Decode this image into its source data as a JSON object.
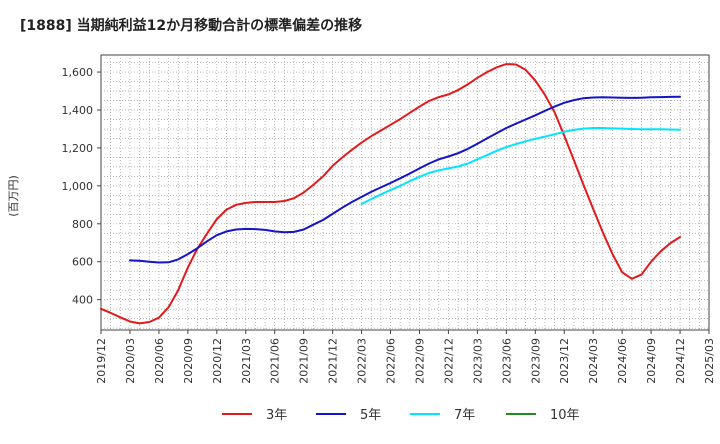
{
  "chart_data": {
    "type": "line",
    "title": "[1888]  当期純利益12か月移動合計の標準偏差の推移",
    "ylabel": "(百万円)",
    "xlabel": "",
    "ylim": [
      240,
      1690
    ],
    "yticks": [
      400,
      600,
      800,
      1000,
      1200,
      1400,
      1600
    ],
    "ytick_labels": [
      "400",
      "600",
      "800",
      "1,000",
      "1,200",
      "1,400",
      "1,600"
    ],
    "x_start": "2019-12",
    "x_end": "2025-03",
    "xtick_labels": [
      "2019/12",
      "2020/03",
      "2020/06",
      "2020/09",
      "2020/12",
      "2021/03",
      "2021/06",
      "2021/09",
      "2021/12",
      "2022/03",
      "2022/06",
      "2022/09",
      "2022/12",
      "2023/03",
      "2023/06",
      "2023/09",
      "2023/12",
      "2024/03",
      "2024/06",
      "2024/09",
      "2024/12",
      "2025/03"
    ],
    "grid": true,
    "legend_position": "bottom",
    "series": [
      {
        "name": "3年",
        "color": "#e31a1c",
        "points": [
          [
            "2019-12",
            352
          ],
          [
            "2020-01",
            330
          ],
          [
            "2020-02",
            307
          ],
          [
            "2020-03",
            285
          ],
          [
            "2020-04",
            275
          ],
          [
            "2020-05",
            282
          ],
          [
            "2020-06",
            305
          ],
          [
            "2020-07",
            360
          ],
          [
            "2020-08",
            450
          ],
          [
            "2020-09",
            570
          ],
          [
            "2020-10",
            670
          ],
          [
            "2020-11",
            750
          ],
          [
            "2020-12",
            825
          ],
          [
            "2021-01",
            875
          ],
          [
            "2021-02",
            900
          ],
          [
            "2021-03",
            910
          ],
          [
            "2021-04",
            915
          ],
          [
            "2021-05",
            915
          ],
          [
            "2021-06",
            915
          ],
          [
            "2021-07",
            920
          ],
          [
            "2021-08",
            935
          ],
          [
            "2021-09",
            965
          ],
          [
            "2021-10",
            1005
          ],
          [
            "2021-11",
            1050
          ],
          [
            "2021-12",
            1105
          ],
          [
            "2022-01",
            1150
          ],
          [
            "2022-02",
            1190
          ],
          [
            "2022-03",
            1228
          ],
          [
            "2022-04",
            1262
          ],
          [
            "2022-05",
            1292
          ],
          [
            "2022-06",
            1322
          ],
          [
            "2022-07",
            1352
          ],
          [
            "2022-08",
            1385
          ],
          [
            "2022-09",
            1418
          ],
          [
            "2022-10",
            1448
          ],
          [
            "2022-11",
            1468
          ],
          [
            "2022-12",
            1482
          ],
          [
            "2023-01",
            1505
          ],
          [
            "2023-02",
            1535
          ],
          [
            "2023-03",
            1570
          ],
          [
            "2023-04",
            1600
          ],
          [
            "2023-05",
            1625
          ],
          [
            "2023-06",
            1642
          ],
          [
            "2023-07",
            1640
          ],
          [
            "2023-08",
            1612
          ],
          [
            "2023-09",
            1555
          ],
          [
            "2023-10",
            1480
          ],
          [
            "2023-11",
            1388
          ],
          [
            "2023-12",
            1265
          ],
          [
            "2024-01",
            1135
          ],
          [
            "2024-02",
            1005
          ],
          [
            "2024-03",
            878
          ],
          [
            "2024-04",
            755
          ],
          [
            "2024-05",
            640
          ],
          [
            "2024-06",
            545
          ],
          [
            "2024-07",
            510
          ],
          [
            "2024-08",
            532
          ],
          [
            "2024-09",
            600
          ],
          [
            "2024-10",
            655
          ],
          [
            "2024-11",
            698
          ],
          [
            "2024-12",
            730
          ]
        ]
      },
      {
        "name": "5年",
        "color": "#1414c8",
        "points": [
          [
            "2020-03",
            607
          ],
          [
            "2020-04",
            605
          ],
          [
            "2020-05",
            600
          ],
          [
            "2020-06",
            596
          ],
          [
            "2020-07",
            597
          ],
          [
            "2020-08",
            612
          ],
          [
            "2020-09",
            640
          ],
          [
            "2020-10",
            672
          ],
          [
            "2020-11",
            708
          ],
          [
            "2020-12",
            740
          ],
          [
            "2021-01",
            760
          ],
          [
            "2021-02",
            770
          ],
          [
            "2021-03",
            773
          ],
          [
            "2021-04",
            772
          ],
          [
            "2021-05",
            768
          ],
          [
            "2021-06",
            760
          ],
          [
            "2021-07",
            755
          ],
          [
            "2021-08",
            757
          ],
          [
            "2021-09",
            770
          ],
          [
            "2021-10",
            795
          ],
          [
            "2021-11",
            820
          ],
          [
            "2021-12",
            852
          ],
          [
            "2022-01",
            885
          ],
          [
            "2022-02",
            915
          ],
          [
            "2022-03",
            942
          ],
          [
            "2022-04",
            968
          ],
          [
            "2022-05",
            992
          ],
          [
            "2022-06",
            1015
          ],
          [
            "2022-07",
            1040
          ],
          [
            "2022-08",
            1065
          ],
          [
            "2022-09",
            1092
          ],
          [
            "2022-10",
            1118
          ],
          [
            "2022-11",
            1140
          ],
          [
            "2022-12",
            1155
          ],
          [
            "2023-01",
            1172
          ],
          [
            "2023-02",
            1195
          ],
          [
            "2023-03",
            1222
          ],
          [
            "2023-04",
            1250
          ],
          [
            "2023-05",
            1278
          ],
          [
            "2023-06",
            1305
          ],
          [
            "2023-07",
            1328
          ],
          [
            "2023-08",
            1350
          ],
          [
            "2023-09",
            1372
          ],
          [
            "2023-10",
            1395
          ],
          [
            "2023-11",
            1418
          ],
          [
            "2023-12",
            1438
          ],
          [
            "2024-01",
            1452
          ],
          [
            "2024-02",
            1462
          ],
          [
            "2024-03",
            1466
          ],
          [
            "2024-04",
            1467
          ],
          [
            "2024-05",
            1466
          ],
          [
            "2024-06",
            1465
          ],
          [
            "2024-07",
            1464
          ],
          [
            "2024-08",
            1465
          ],
          [
            "2024-09",
            1467
          ],
          [
            "2024-10",
            1468
          ],
          [
            "2024-11",
            1469
          ],
          [
            "2024-12",
            1470
          ]
        ]
      },
      {
        "name": "7年",
        "color": "#00e5ff",
        "points": [
          [
            "2022-03",
            905
          ],
          [
            "2022-04",
            930
          ],
          [
            "2022-05",
            955
          ],
          [
            "2022-06",
            978
          ],
          [
            "2022-07",
            1000
          ],
          [
            "2022-08",
            1025
          ],
          [
            "2022-09",
            1048
          ],
          [
            "2022-10",
            1068
          ],
          [
            "2022-11",
            1082
          ],
          [
            "2022-12",
            1092
          ],
          [
            "2023-01",
            1102
          ],
          [
            "2023-02",
            1118
          ],
          [
            "2023-03",
            1140
          ],
          [
            "2023-04",
            1162
          ],
          [
            "2023-05",
            1185
          ],
          [
            "2023-06",
            1205
          ],
          [
            "2023-07",
            1220
          ],
          [
            "2023-08",
            1235
          ],
          [
            "2023-09",
            1248
          ],
          [
            "2023-10",
            1260
          ],
          [
            "2023-11",
            1272
          ],
          [
            "2023-12",
            1285
          ],
          [
            "2024-01",
            1295
          ],
          [
            "2024-02",
            1302
          ],
          [
            "2024-03",
            1305
          ],
          [
            "2024-04",
            1305
          ],
          [
            "2024-05",
            1303
          ],
          [
            "2024-06",
            1302
          ],
          [
            "2024-07",
            1300
          ],
          [
            "2024-08",
            1299
          ],
          [
            "2024-09",
            1299
          ],
          [
            "2024-10",
            1298
          ],
          [
            "2024-11",
            1297
          ],
          [
            "2024-12",
            1296
          ]
        ]
      },
      {
        "name": "10年",
        "color": "#228b22",
        "points": []
      }
    ]
  }
}
